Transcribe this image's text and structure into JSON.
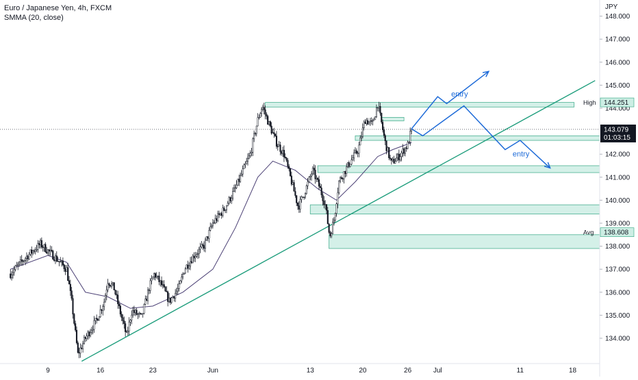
{
  "legend": {
    "title": "Euro / Japanese Yen, 4h, FXCM",
    "indicator": "SMMA (20, close)"
  },
  "colors": {
    "background": "#ffffff",
    "candle": "#131722",
    "smma": "#4a3f74",
    "zone_fill": "#cdeee4",
    "zone_stroke": "#2aa37e",
    "trendline": "#1f9e7d",
    "arrow": "#1e6bd8",
    "axis_text": "#131722",
    "price_label_bg": "#131722"
  },
  "chart_data": {
    "type": "candlestick",
    "symbol": "EURJPY",
    "timeframe": "4h",
    "y_axis": {
      "unit": "JPY",
      "ylim": [
        133.0,
        148.4
      ],
      "ticks": [
        "148.000",
        "147.000",
        "146.000",
        "145.000",
        "144.000",
        "142.000",
        "141.000",
        "140.000",
        "139.000",
        "138.000",
        "137.000",
        "136.000",
        "135.000",
        "134.000"
      ]
    },
    "x_axis": {
      "ticks": [
        {
          "label": "9",
          "day": 9
        },
        {
          "label": "16",
          "day": 16
        },
        {
          "label": "23",
          "day": 23
        },
        {
          "label": "Jun",
          "day": 31
        },
        {
          "label": "13",
          "day": 44
        },
        {
          "label": "20",
          "day": 51
        },
        {
          "label": "26",
          "day": 57
        },
        {
          "label": "Jul",
          "day": 61
        },
        {
          "label": "11",
          "day": 72
        },
        {
          "label": "18",
          "day": 79
        }
      ]
    },
    "price_path": [
      [
        4.0,
        136.8
      ],
      [
        6.0,
        137.5
      ],
      [
        8.0,
        138.1
      ],
      [
        10.0,
        137.5
      ],
      [
        11.5,
        137.0
      ],
      [
        12.2,
        135.5
      ],
      [
        13.0,
        133.3
      ],
      [
        14.0,
        134.0
      ],
      [
        15.5,
        134.8
      ],
      [
        16.5,
        135.6
      ],
      [
        17.0,
        136.5
      ],
      [
        17.8,
        136.2
      ],
      [
        18.5,
        135.3
      ],
      [
        19.5,
        134.1
      ],
      [
        20.2,
        135.2
      ],
      [
        21.5,
        134.9
      ],
      [
        22.5,
        136.2
      ],
      [
        23.2,
        136.8
      ],
      [
        24.2,
        136.3
      ],
      [
        25.2,
        135.6
      ],
      [
        26.5,
        136.2
      ],
      [
        27.2,
        137.0
      ],
      [
        28.5,
        137.6
      ],
      [
        29.8,
        138.0
      ],
      [
        31.0,
        139.0
      ],
      [
        32.5,
        139.6
      ],
      [
        34.0,
        140.5
      ],
      [
        36.0,
        142.0
      ],
      [
        37.0,
        143.5
      ],
      [
        37.6,
        144.1
      ],
      [
        38.5,
        143.3
      ],
      [
        39.5,
        142.5
      ],
      [
        40.5,
        142.0
      ],
      [
        41.5,
        140.8
      ],
      [
        42.4,
        139.7
      ],
      [
        43.2,
        140.3
      ],
      [
        44.3,
        141.3
      ],
      [
        45.2,
        140.6
      ],
      [
        46.0,
        139.8
      ],
      [
        46.6,
        138.4
      ],
      [
        47.2,
        139.2
      ],
      [
        47.8,
        140.8
      ],
      [
        49.2,
        141.6
      ],
      [
        50.4,
        142.2
      ],
      [
        51.3,
        143.5
      ],
      [
        52.3,
        143.3
      ],
      [
        53.0,
        144.2
      ],
      [
        54.0,
        142.5
      ],
      [
        54.8,
        141.6
      ],
      [
        55.8,
        141.9
      ],
      [
        57.0,
        142.4
      ],
      [
        57.5,
        143.08
      ]
    ],
    "last_price": "143.079",
    "countdown": "01:03:15",
    "smma_path": [
      [
        4.0,
        137.0
      ],
      [
        9.0,
        137.6
      ],
      [
        11.5,
        137.3
      ],
      [
        14.0,
        136.0
      ],
      [
        17.0,
        135.8
      ],
      [
        20.0,
        135.3
      ],
      [
        23.0,
        135.4
      ],
      [
        27.0,
        136.0
      ],
      [
        31.0,
        137.0
      ],
      [
        34.0,
        138.8
      ],
      [
        37.0,
        141.0
      ],
      [
        39.0,
        141.7
      ],
      [
        42.0,
        141.3
      ],
      [
        45.0,
        140.5
      ],
      [
        47.5,
        140.0
      ],
      [
        50.0,
        140.8
      ],
      [
        53.0,
        141.9
      ],
      [
        55.0,
        142.2
      ],
      [
        57.5,
        142.5
      ]
    ],
    "levels": [
      {
        "name": "High",
        "value": "144.251",
        "price": 144.251
      },
      {
        "name": "Avg",
        "value": "138.608",
        "price": 138.608
      }
    ],
    "zones": [
      {
        "day_from": 38.0,
        "day_to": 79.2,
        "top": 144.25,
        "bottom": 144.05
      },
      {
        "day_from": 53.5,
        "day_to": 56.5,
        "top": 143.6,
        "bottom": 143.45
      },
      {
        "day_from": 50.0,
        "day_to": 85.0,
        "top": 142.8,
        "bottom": 142.6
      },
      {
        "day_from": 45.0,
        "day_to": 85.0,
        "top": 141.5,
        "bottom": 141.2
      },
      {
        "day_from": 44.0,
        "day_to": 85.0,
        "top": 139.8,
        "bottom": 139.4
      },
      {
        "day_from": 46.5,
        "day_to": 85.0,
        "top": 138.5,
        "bottom": 137.9
      }
    ],
    "trendline": {
      "from": [
        13.5,
        133.0
      ],
      "to": [
        82.0,
        145.2
      ]
    },
    "scenarios": [
      {
        "label": "entry",
        "path": [
          [
            57.5,
            143.1
          ],
          [
            61.0,
            144.5
          ],
          [
            62.2,
            144.2
          ],
          [
            67.8,
            145.6
          ]
        ],
        "label_at": [
          62.8,
          144.5
        ]
      },
      {
        "label": "entry",
        "path": [
          [
            57.5,
            143.1
          ],
          [
            59.0,
            142.8
          ],
          [
            64.5,
            144.1
          ],
          [
            70.0,
            142.2
          ],
          [
            72.0,
            142.6
          ],
          [
            76.0,
            141.4
          ]
        ],
        "label_at": [
          71.0,
          141.9
        ]
      }
    ]
  }
}
